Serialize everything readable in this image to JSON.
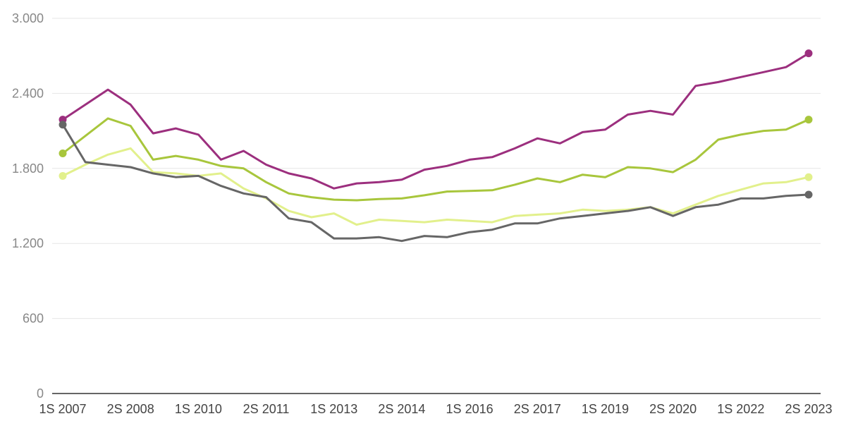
{
  "chart_data": {
    "type": "line",
    "title": "",
    "xlabel": "",
    "ylabel": "",
    "ylim": [
      0,
      3000
    ],
    "yticks": [
      0,
      600,
      1200,
      1800,
      2400,
      3000
    ],
    "ytick_labels": [
      "0",
      "600",
      "1.200",
      "1.800",
      "2.400",
      "3.000"
    ],
    "x": [
      "1S 2007",
      "2S 2007",
      "1S 2008",
      "2S 2008",
      "1S 2009",
      "2S 2009",
      "1S 2010",
      "2S 2010",
      "1S 2011",
      "2S 2011",
      "1S 2012",
      "2S 2012",
      "1S 2013",
      "2S 2013",
      "1S 2014",
      "2S 2014",
      "1S 2015",
      "2S 2015",
      "1S 2016",
      "2S 2016",
      "1S 2017",
      "2S 2017",
      "1S 2018",
      "2S 2018",
      "1S 2019",
      "2S 2019",
      "1S 2020",
      "2S 2020",
      "1S 2021",
      "2S 2021",
      "1S 2022",
      "2S 2022",
      "1S 2023",
      "2S 2023"
    ],
    "xtick_labels": [
      "1S 2007",
      "2S 2008",
      "1S 2010",
      "2S 2011",
      "1S 2013",
      "2S 2014",
      "1S 2016",
      "2S 2017",
      "1S 2019",
      "2S 2020",
      "1S 2022",
      "2S 2023"
    ],
    "grid": true,
    "end_markers": true,
    "series": [
      {
        "color": "#9c2f7e",
        "values": [
          2190,
          2310,
          2430,
          2310,
          2080,
          2120,
          2070,
          1870,
          1940,
          1830,
          1760,
          1720,
          1640,
          1680,
          1690,
          1710,
          1790,
          1820,
          1870,
          1890,
          1960,
          2040,
          2000,
          2090,
          2110,
          2230,
          2260,
          2230,
          2460,
          2490,
          2530,
          2570,
          2610,
          2720
        ]
      },
      {
        "color": "#a8c63c",
        "values": [
          1920,
          2060,
          2200,
          2140,
          1870,
          1900,
          1870,
          1820,
          1800,
          1690,
          1600,
          1570,
          1550,
          1545,
          1555,
          1560,
          1585,
          1615,
          1620,
          1625,
          1670,
          1720,
          1690,
          1750,
          1730,
          1810,
          1800,
          1770,
          1870,
          2030,
          2070,
          2100,
          2110,
          2190
        ]
      },
      {
        "color": "#e2f08c",
        "values": [
          1740,
          1830,
          1910,
          1960,
          1770,
          1760,
          1740,
          1760,
          1640,
          1560,
          1460,
          1410,
          1440,
          1350,
          1390,
          1380,
          1370,
          1390,
          1380,
          1370,
          1420,
          1430,
          1440,
          1470,
          1460,
          1470,
          1490,
          1440,
          1510,
          1580,
          1630,
          1680,
          1690,
          1730
        ]
      },
      {
        "color": "#666666",
        "values": [
          2150,
          1850,
          1830,
          1810,
          1760,
          1730,
          1740,
          1660,
          1600,
          1570,
          1400,
          1370,
          1240,
          1240,
          1250,
          1220,
          1260,
          1250,
          1290,
          1310,
          1360,
          1360,
          1400,
          1420,
          1440,
          1460,
          1490,
          1420,
          1490,
          1510,
          1560,
          1560,
          1580,
          1590
        ]
      }
    ]
  }
}
